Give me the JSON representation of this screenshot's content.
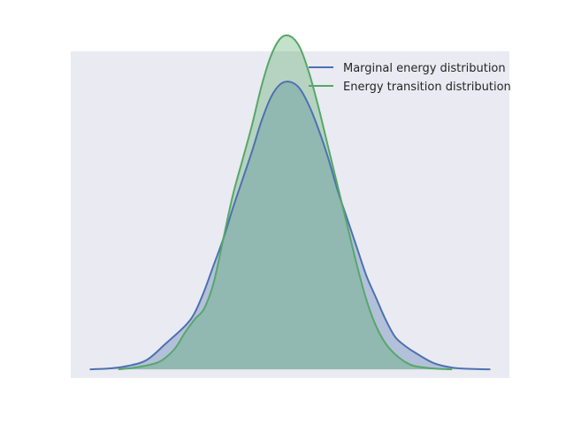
{
  "chart_data": {
    "type": "area",
    "title": "",
    "xlabel": "",
    "ylabel": "",
    "xlim": [
      -4.6,
      4.6
    ],
    "ylim": [
      -0.02,
      0.73
    ],
    "grid": false,
    "legend_position": "top-right",
    "colors": {
      "background": "#EAEAF2"
    },
    "series": [
      {
        "name": "Marginal energy distribution",
        "color": "#4C72B0",
        "fill_opacity": 0.35,
        "x": [
          -4.2,
          -3.8,
          -3.4,
          -3.0,
          -2.6,
          -2.2,
          -2.0,
          -1.8,
          -1.6,
          -1.4,
          -1.2,
          -1.0,
          -0.8,
          -0.6,
          -0.4,
          -0.2,
          0.0,
          0.2,
          0.4,
          0.6,
          0.8,
          1.0,
          1.2,
          1.4,
          1.6,
          1.8,
          2.0,
          2.2,
          2.4,
          2.6,
          3.0,
          3.4,
          3.8,
          4.2
        ],
        "y": [
          0.0,
          0.002,
          0.008,
          0.022,
          0.06,
          0.1,
          0.13,
          0.18,
          0.24,
          0.3,
          0.37,
          0.435,
          0.5,
          0.57,
          0.625,
          0.655,
          0.66,
          0.645,
          0.605,
          0.55,
          0.485,
          0.41,
          0.345,
          0.28,
          0.215,
          0.165,
          0.115,
          0.075,
          0.055,
          0.04,
          0.015,
          0.004,
          0.001,
          0.0
        ]
      },
      {
        "name": "Energy transition distribution",
        "color": "#55A868",
        "fill_opacity": 0.35,
        "x": [
          -3.6,
          -3.2,
          -2.8,
          -2.6,
          -2.4,
          -2.2,
          -2.0,
          -1.8,
          -1.6,
          -1.4,
          -1.2,
          -1.0,
          -0.8,
          -0.6,
          -0.4,
          -0.2,
          0.0,
          0.2,
          0.4,
          0.6,
          0.8,
          1.0,
          1.2,
          1.4,
          1.6,
          1.8,
          2.0,
          2.2,
          2.4,
          2.6,
          3.0,
          3.4
        ],
        "y": [
          0.0,
          0.005,
          0.015,
          0.028,
          0.05,
          0.085,
          0.115,
          0.14,
          0.2,
          0.3,
          0.4,
          0.48,
          0.56,
          0.65,
          0.72,
          0.76,
          0.765,
          0.74,
          0.68,
          0.6,
          0.51,
          0.42,
          0.33,
          0.24,
          0.16,
          0.1,
          0.06,
          0.035,
          0.018,
          0.008,
          0.002,
          0.0
        ]
      }
    ]
  }
}
